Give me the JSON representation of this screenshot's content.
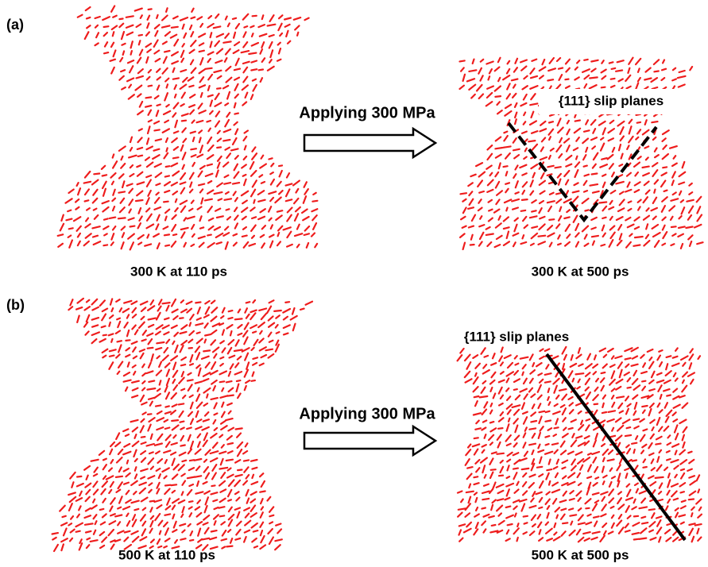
{
  "panels": [
    {
      "label": "(a)",
      "left_caption": "300 K at 110 ps",
      "arrow_label": "Applying 300 MPa",
      "right_caption": "300 K at 500 ps",
      "annotation": "{111} slip planes"
    },
    {
      "label": "(b)",
      "left_caption": "500 K at 110 ps",
      "arrow_label": "Applying 300 MPa",
      "right_caption": "500 K at 500 ps",
      "annotation": "{111} slip planes"
    }
  ]
}
